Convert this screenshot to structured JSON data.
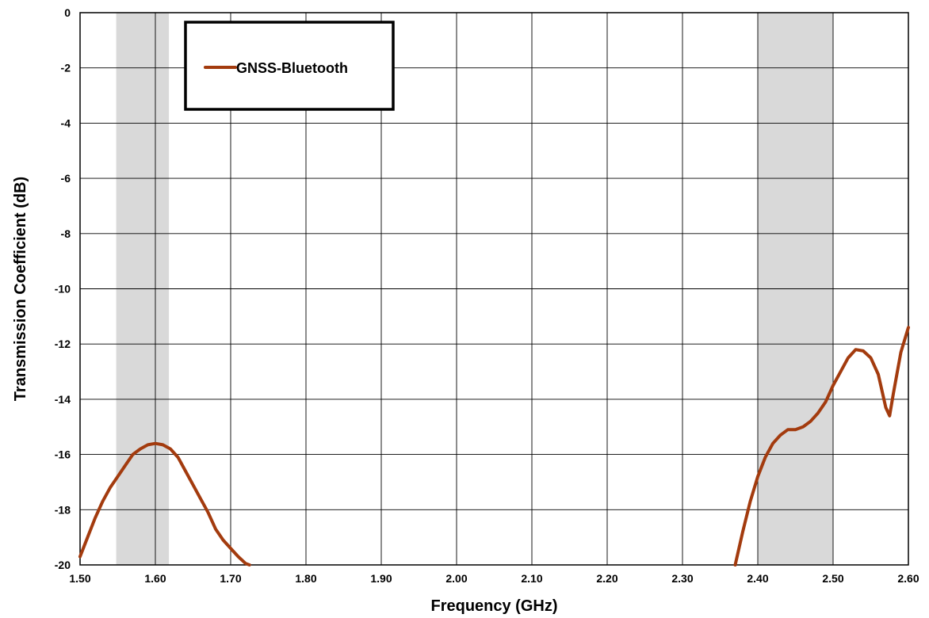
{
  "chart_data": {
    "type": "line",
    "xlabel": "Frequency (GHz)",
    "ylabel": "Transmission Coefficient (dB)",
    "xlim": [
      1.5,
      2.6
    ],
    "ylim": [
      -20,
      0
    ],
    "x_ticks": [
      "1.50",
      "1.60",
      "1.70",
      "1.80",
      "1.90",
      "2.00",
      "2.10",
      "2.20",
      "2.30",
      "2.40",
      "2.50",
      "2.60"
    ],
    "y_ticks": [
      "0",
      "-2",
      "-4",
      "-6",
      "-8",
      "-10",
      "-12",
      "-14",
      "-16",
      "-18",
      "-20"
    ],
    "grid": true,
    "legend_position": "top-left",
    "shaded_bands": [
      {
        "x_start": 1.548,
        "x_end": 1.618,
        "color": "#d9d9d9"
      },
      {
        "x_start": 2.4,
        "x_end": 2.5,
        "color": "#d9d9d9"
      }
    ],
    "series": [
      {
        "name": "GNSS-Bluetooth",
        "color": "#a33b0e",
        "segments": [
          {
            "x": [
              1.5,
              1.51,
              1.52,
              1.53,
              1.54,
              1.55,
              1.56,
              1.57,
              1.58,
              1.59,
              1.6,
              1.61,
              1.62,
              1.63,
              1.64,
              1.65,
              1.66,
              1.67,
              1.68,
              1.69,
              1.7,
              1.71,
              1.72,
              1.725
            ],
            "y": [
              -19.7,
              -19.0,
              -18.3,
              -17.7,
              -17.2,
              -16.8,
              -16.4,
              -16.0,
              -15.8,
              -15.65,
              -15.6,
              -15.65,
              -15.8,
              -16.1,
              -16.6,
              -17.1,
              -17.6,
              -18.1,
              -18.7,
              -19.1,
              -19.4,
              -19.7,
              -19.95,
              -20.0
            ]
          },
          {
            "x": [
              2.37,
              2.38,
              2.39,
              2.4,
              2.41,
              2.42,
              2.43,
              2.44,
              2.45,
              2.46,
              2.47,
              2.48,
              2.49,
              2.5,
              2.51,
              2.52,
              2.53,
              2.54,
              2.55,
              2.56,
              2.57,
              2.575,
              2.58,
              2.59,
              2.6
            ],
            "y": [
              -20.0,
              -18.8,
              -17.7,
              -16.8,
              -16.1,
              -15.6,
              -15.3,
              -15.1,
              -15.1,
              -15.0,
              -14.8,
              -14.5,
              -14.1,
              -13.5,
              -13.0,
              -12.5,
              -12.2,
              -12.25,
              -12.5,
              -13.1,
              -14.3,
              -14.6,
              -13.8,
              -12.3,
              -11.4
            ]
          }
        ]
      }
    ]
  }
}
